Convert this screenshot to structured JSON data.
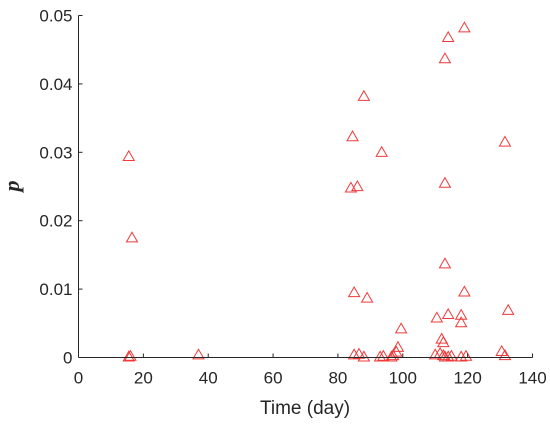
{
  "chart_data": {
    "type": "scatter",
    "title": "",
    "xlabel": "Time (day)",
    "ylabel": "p",
    "xlim": [
      0,
      140
    ],
    "ylim": [
      0,
      0.05
    ],
    "x_ticks": [
      0,
      20,
      40,
      60,
      80,
      100,
      120,
      140
    ],
    "y_ticks": [
      0,
      0.01,
      0.02,
      0.03,
      0.04,
      0.05
    ],
    "x_tick_labels": [
      "0",
      "20",
      "40",
      "60",
      "80",
      "100",
      "120",
      "140"
    ],
    "y_tick_labels": [
      "0",
      "0.01",
      "0.02",
      "0.03",
      "0.04",
      "0.05"
    ],
    "grid": false,
    "marker": "triangle",
    "color": "#f03a3a",
    "series": [
      {
        "points": [
          [
            15.5,
            0.0294
          ],
          [
            16.5,
            0.0175
          ],
          [
            15.5,
            0.0001
          ],
          [
            16,
            0.0002
          ],
          [
            37,
            0.0004
          ],
          [
            84,
            0.0248
          ],
          [
            84.5,
            0.0323
          ],
          [
            86,
            0.025
          ],
          [
            88,
            0.0382
          ],
          [
            85,
            0.0095
          ],
          [
            89,
            0.0087
          ],
          [
            85,
            0.0004
          ],
          [
            86.5,
            0.0005
          ],
          [
            88,
            0.0001
          ],
          [
            93.5,
            0.03
          ],
          [
            93,
            0.0001
          ],
          [
            94,
            0.0002
          ],
          [
            96.5,
            0.0001
          ],
          [
            97,
            0.0003
          ],
          [
            98,
            0.0008
          ],
          [
            98.5,
            0.0015
          ],
          [
            99.5,
            0.0042
          ],
          [
            113,
            0.0437
          ],
          [
            114,
            0.0468
          ],
          [
            119,
            0.0482
          ],
          [
            113,
            0.0255
          ],
          [
            113,
            0.0137
          ],
          [
            110.5,
            0.0058
          ],
          [
            114,
            0.0063
          ],
          [
            118,
            0.0062
          ],
          [
            118,
            0.0051
          ],
          [
            119,
            0.0096
          ],
          [
            112,
            0.0027
          ],
          [
            112.5,
            0.0022
          ],
          [
            110,
            0.0004
          ],
          [
            111.5,
            0.0006
          ],
          [
            112.5,
            0.0003
          ],
          [
            113,
            0.0001
          ],
          [
            114,
            0.0001
          ],
          [
            115,
            0.0002
          ],
          [
            118,
            0.0001
          ],
          [
            119.5,
            0.0002
          ],
          [
            131.5,
            0.0315
          ],
          [
            132.5,
            0.0069
          ],
          [
            130.5,
            0.0009
          ],
          [
            131.5,
            0.0003
          ]
        ]
      }
    ]
  }
}
